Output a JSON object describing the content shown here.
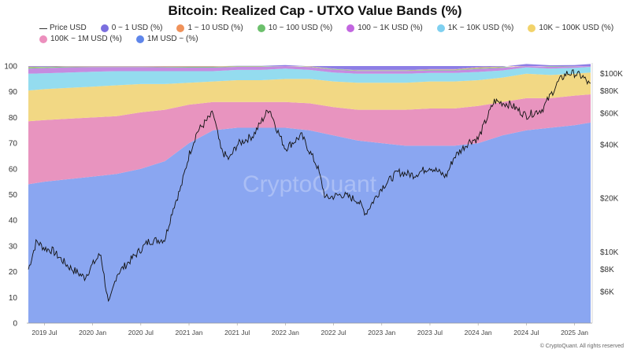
{
  "title": "Bitcoin: Realized Cap - UTXO Value Bands (%)",
  "watermark": "CryptoQuant",
  "copyright": "© CryptoQuant. All rights reserved",
  "legend": {
    "row1": [
      {
        "label": "Price USD",
        "color": "#333333",
        "marker": "line"
      },
      {
        "label": "0 ~ 1 USD (%)",
        "color": "#7b6fdf",
        "marker": "dot"
      },
      {
        "label": "1 ~ 10 USD (%)",
        "color": "#f0925a",
        "marker": "dot"
      },
      {
        "label": "10 ~ 100 USD (%)",
        "color": "#6cc06c",
        "marker": "dot"
      },
      {
        "label": "100 ~ 1K USD (%)",
        "color": "#c266e0",
        "marker": "dot"
      },
      {
        "label": "1K ~ 10K USD (%)",
        "color": "#7fd0f0",
        "marker": "dot"
      },
      {
        "label": "10K ~ 100K USD (%)",
        "color": "#f2d36a",
        "marker": "dot"
      }
    ],
    "row2": [
      {
        "label": "100K ~ 1M USD (%)",
        "color": "#ec8fbd",
        "marker": "dot"
      },
      {
        "label": "1M USD ~ (%)",
        "color": "#5f86ea",
        "marker": "dot"
      }
    ]
  },
  "chart_data": {
    "type": "area",
    "stacked": true,
    "title": "Bitcoin: Realized Cap - UTXO Value Bands (%)",
    "x_ticks": [
      "2019 Jul",
      "2020 Jan",
      "2020 Jul",
      "2021 Jan",
      "2021 Jul",
      "2022 Jan",
      "2022 Jul",
      "2023 Jan",
      "2023 Jul",
      "2024 Jan",
      "2024 Jul",
      "2025 Jan"
    ],
    "x": [
      "2019-05",
      "2019-07",
      "2019-10",
      "2020-01",
      "2020-04",
      "2020-07",
      "2020-10",
      "2021-01",
      "2021-04",
      "2021-07",
      "2021-10",
      "2022-01",
      "2022-04",
      "2022-07",
      "2022-10",
      "2023-01",
      "2023-04",
      "2023-07",
      "2023-10",
      "2024-01",
      "2024-04",
      "2024-07",
      "2024-10",
      "2025-01",
      "2025-03"
    ],
    "ylim_left": [
      0,
      100
    ],
    "y_ticks_left": [
      0,
      10,
      20,
      30,
      40,
      50,
      60,
      70,
      80,
      90,
      100
    ],
    "y_ticks_right": [
      "$6K",
      "$8K",
      "$10K",
      "$20K",
      "$40K",
      "$60K",
      "$80K",
      "$100K"
    ],
    "y_ticks_right_values": [
      6000,
      8000,
      10000,
      20000,
      40000,
      60000,
      80000,
      100000
    ],
    "right_axis_scale": "log",
    "ylim_right": [
      4000,
      110000
    ],
    "series": [
      {
        "name": "1M USD ~ (%)",
        "color": "#8aa6f1",
        "values": [
          54,
          55,
          56,
          57,
          58,
          60,
          63,
          70,
          75,
          76,
          76,
          76,
          75,
          73,
          71,
          70,
          69,
          69,
          69,
          70,
          73,
          75,
          76,
          77,
          78
        ]
      },
      {
        "name": "100K ~ 1M USD (%)",
        "color": "#e894bf",
        "values": [
          24.5,
          24,
          23.5,
          23,
          22.5,
          22,
          20,
          15,
          11,
          10,
          10,
          10,
          10.5,
          11,
          12,
          13,
          14,
          14.5,
          14.5,
          14.5,
          13,
          12.5,
          11.5,
          11.5,
          11
        ]
      },
      {
        "name": "10K ~ 100K USD (%)",
        "color": "#f2d884",
        "values": [
          12,
          12,
          12,
          12,
          12,
          11,
          10,
          8.5,
          8,
          8.5,
          8.5,
          9,
          9.5,
          10,
          10.5,
          10.5,
          10.5,
          10.5,
          10.5,
          10,
          9.5,
          9.5,
          9,
          8.5,
          8.5
        ]
      },
      {
        "name": "1K ~ 10K USD (%)",
        "color": "#94dcef",
        "values": [
          6.5,
          6.2,
          6,
          5.8,
          5.5,
          5,
          5,
          4.5,
          4,
          4,
          4,
          4,
          3.5,
          3.5,
          3.5,
          3.5,
          3.5,
          3.3,
          3.3,
          3.2,
          2.8,
          2.5,
          2.5,
          2.3,
          2.2
        ]
      },
      {
        "name": "100 ~ 1K USD (%)",
        "color": "#c58be0",
        "values": [
          2,
          2,
          2,
          1.8,
          1.6,
          1.6,
          1.5,
          1.4,
          1.4,
          1.2,
          1.2,
          1,
          1.1,
          1.1,
          1.1,
          1.1,
          1.1,
          1,
          1,
          1.2,
          1,
          0.8,
          0.8,
          0.6,
          0.6
        ]
      },
      {
        "name": "10 ~ 100 USD (%)",
        "color": "#7dcc88",
        "values": [
          0.5,
          0.4,
          0.3,
          0.2,
          0.2,
          0.2,
          0.2,
          0.3,
          0.3,
          0.2,
          0.2,
          0.2,
          0.2,
          0.2,
          0.2,
          0.2,
          0.2,
          0.2,
          0.2,
          0.3,
          0.3,
          0.3,
          0.3,
          0.3,
          0.3
        ]
      },
      {
        "name": "1 ~ 10 USD (%)",
        "color": "#f3a87a",
        "values": [
          0.3,
          0.2,
          0.1,
          0.1,
          0.1,
          0.1,
          0.2,
          0.2,
          0.2,
          0.2,
          0.2,
          0.2,
          0.1,
          0.1,
          0.1,
          0.1,
          0.1,
          0.2,
          0.2,
          0.3,
          0.2,
          0.2,
          0.2,
          0.2,
          0.2
        ]
      },
      {
        "name": "0 ~ 1 USD (%)",
        "color": "#8d7ee6",
        "values": [
          0.2,
          0.2,
          0.1,
          0.1,
          0.1,
          0.1,
          0.1,
          0.1,
          0.1,
          0.1,
          0.1,
          0.1,
          0.1,
          0.1,
          0.1,
          0.1,
          0.1,
          0.1,
          0.1,
          0.2,
          0.2,
          0.2,
          0.2,
          0.2,
          0.2
        ]
      }
    ],
    "price_series": {
      "name": "Price USD",
      "color": "#111111",
      "x": [
        "2019-05",
        "2019-06",
        "2019-07",
        "2019-08",
        "2019-10",
        "2019-12",
        "2020-01",
        "2020-02",
        "2020-03",
        "2020-04",
        "2020-06",
        "2020-08",
        "2020-10",
        "2020-11",
        "2020-12",
        "2021-01",
        "2021-02",
        "2021-04",
        "2021-05",
        "2021-06",
        "2021-07",
        "2021-09",
        "2021-11",
        "2021-12",
        "2022-01",
        "2022-03",
        "2022-05",
        "2022-06",
        "2022-08",
        "2022-10",
        "2022-11",
        "2023-01",
        "2023-03",
        "2023-05",
        "2023-07",
        "2023-09",
        "2023-10",
        "2023-12",
        "2024-01",
        "2024-03",
        "2024-05",
        "2024-07",
        "2024-09",
        "2024-11",
        "2024-12",
        "2025-01",
        "2025-02",
        "2025-03"
      ],
      "values": [
        8000,
        11500,
        10500,
        10200,
        8300,
        7200,
        8500,
        9800,
        5000,
        7500,
        9300,
        11500,
        11800,
        17500,
        23000,
        35000,
        47000,
        60000,
        37000,
        33000,
        40000,
        45000,
        64000,
        48000,
        38000,
        45000,
        30000,
        20000,
        21000,
        19500,
        16500,
        23000,
        28000,
        27000,
        30000,
        26500,
        34000,
        42000,
        43000,
        70000,
        67000,
        58000,
        63000,
        90000,
        100000,
        100000,
        96000,
        85000
      ]
    }
  }
}
